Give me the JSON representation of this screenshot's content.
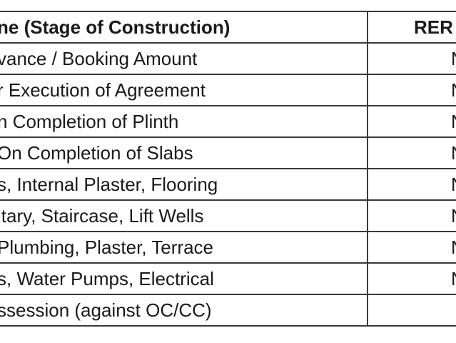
{
  "table": {
    "headers": {
      "stage": "ne (Stage of Construction)",
      "rera": "RER"
    },
    "rows": [
      {
        "stage": "vance / Booking Amount",
        "rera": "N"
      },
      {
        "stage": "r Execution of Agreement",
        "rera": "N"
      },
      {
        "stage": "n Completion of Plinth",
        "rera": "N"
      },
      {
        "stage": "On Completion of Slabs",
        "rera": "N"
      },
      {
        "stage": "s, Internal Plaster, Flooring",
        "rera": "N"
      },
      {
        "stage": "itary, Staircase, Lift Wells",
        "rera": "N"
      },
      {
        "stage": "Plumbing, Plaster, Terrace",
        "rera": "N"
      },
      {
        "stage": "s, Water Pumps, Electrical",
        "rera": "N"
      },
      {
        "stage": "ssession (against OC/CC)",
        "rera": ""
      }
    ]
  }
}
